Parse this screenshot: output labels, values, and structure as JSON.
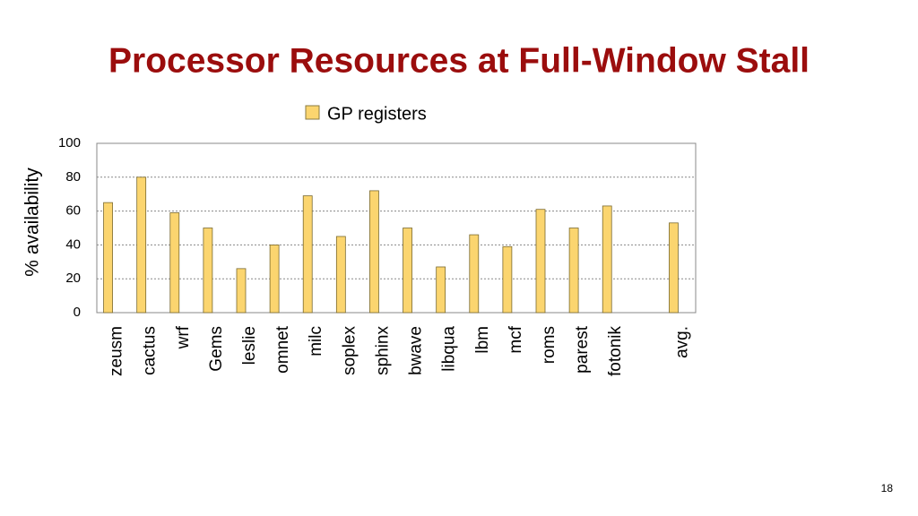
{
  "title": "Processor Resources at Full-Window Stall",
  "page_number": "18",
  "chart_data": {
    "type": "bar",
    "y_label": "% availability",
    "categories": [
      "zeusm",
      "cactus",
      "wrf",
      "Gems",
      "leslie",
      "omnet",
      "milc",
      "soplex",
      "sphinx",
      "bwave",
      "libqua",
      "lbm",
      "mcf",
      "roms",
      "parest",
      "fotonik",
      null,
      "avg."
    ],
    "series": [
      {
        "name": "GP registers",
        "color": "#fbd56f",
        "values": [
          65,
          80,
          59,
          50,
          26,
          40,
          69,
          45,
          72,
          50,
          27,
          46,
          39,
          61,
          50,
          63,
          null,
          53
        ]
      }
    ],
    "ylim": [
      0,
      100
    ],
    "yticks": [
      0,
      20,
      40,
      60,
      80,
      100
    ],
    "grid": true
  }
}
